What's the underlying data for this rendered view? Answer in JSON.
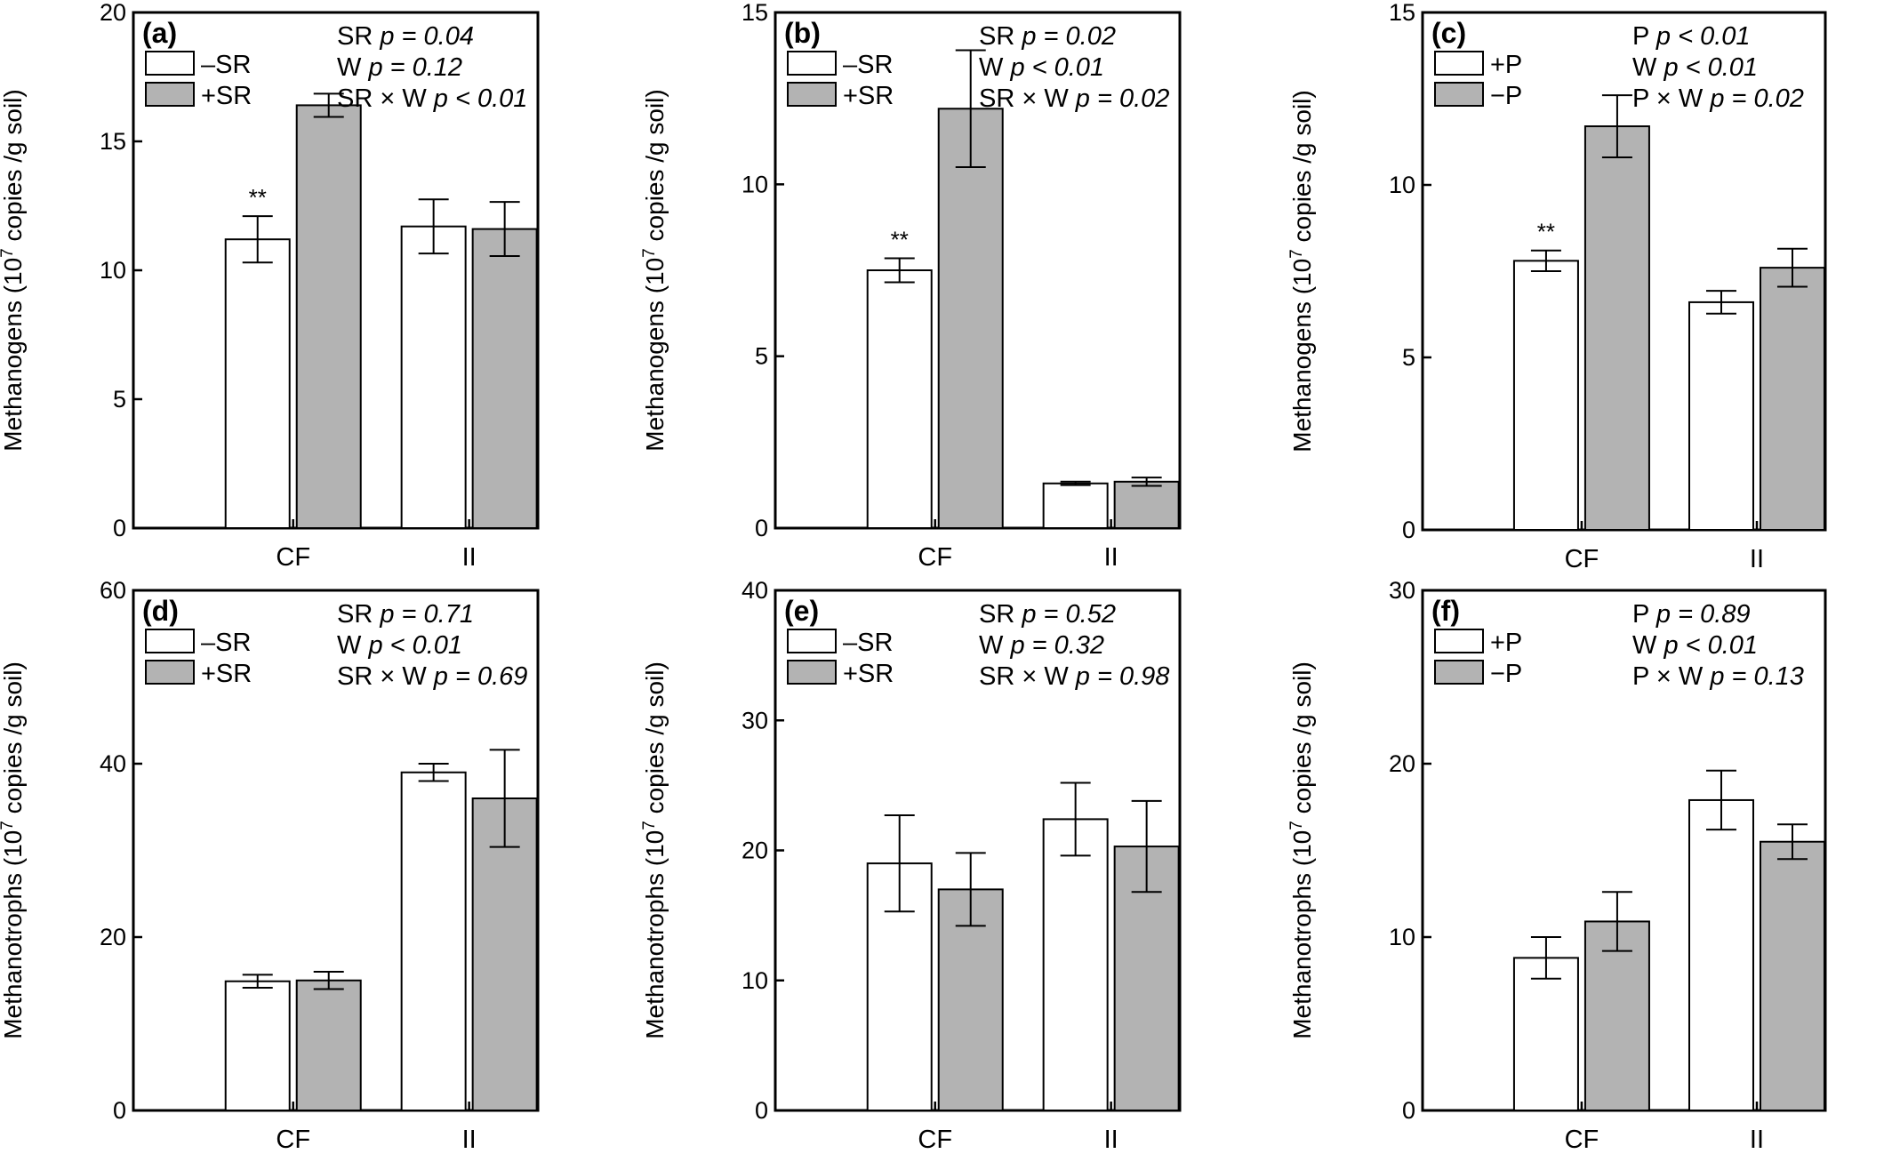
{
  "figure": {
    "ylabel_methanogens": "Methanogens  (10^7 copies /g soil)",
    "ylabel_methanotrophs": "Methanotrophs (10^7 copies /g soil)"
  },
  "chart_data": [
    {
      "type": "bar",
      "panel": "(a)",
      "ylabel": "Methanogens  (10^7 copies /g soil)",
      "categories": [
        "CF",
        "II"
      ],
      "ylim": [
        0,
        20
      ],
      "yticks": [
        0,
        5,
        10,
        15,
        20
      ],
      "series": [
        {
          "name": "–SR",
          "fill": "#ffffff",
          "values": [
            11.2,
            11.7
          ],
          "errors": [
            0.9,
            1.05
          ]
        },
        {
          "name": "+SR",
          "fill": "#b3b3b3",
          "values": [
            16.4,
            11.6
          ],
          "errors": [
            0.45,
            1.05
          ]
        }
      ],
      "stats": [
        {
          "label": "SR",
          "value": "p = 0.04"
        },
        {
          "label": "W",
          "value": "p = 0.12"
        },
        {
          "label": "SR × W",
          "value": "p < 0.01"
        }
      ],
      "annotations": [
        {
          "text": "**",
          "category": "CF",
          "series": 0
        }
      ]
    },
    {
      "type": "bar",
      "panel": "(b)",
      "ylabel": "Methanogens (10^7 copies /g soil)",
      "categories": [
        "CF",
        "II"
      ],
      "ylim": [
        0,
        15
      ],
      "yticks": [
        0,
        5,
        10,
        15
      ],
      "series": [
        {
          "name": "–SR",
          "fill": "#ffffff",
          "values": [
            7.5,
            1.3
          ],
          "errors": [
            0.35,
            0.05
          ]
        },
        {
          "name": "+SR",
          "fill": "#b3b3b3",
          "values": [
            12.2,
            1.35
          ],
          "errors": [
            1.7,
            0.12
          ]
        }
      ],
      "stats": [
        {
          "label": "SR",
          "value": "p = 0.02"
        },
        {
          "label": "W",
          "value": "p < 0.01"
        },
        {
          "label": "SR × W",
          "value": "p = 0.02"
        }
      ],
      "annotations": [
        {
          "text": "**",
          "category": "CF",
          "series": 0
        }
      ]
    },
    {
      "type": "bar",
      "panel": "(c)",
      "ylabel": "Methanogens (10^7 copies /g soil)",
      "categories": [
        "CF",
        "II"
      ],
      "ylim": [
        0,
        15
      ],
      "yticks": [
        0,
        5,
        10,
        15
      ],
      "series": [
        {
          "name": "+P",
          "fill": "#ffffff",
          "values": [
            7.8,
            6.6
          ],
          "errors": [
            0.3,
            0.33
          ]
        },
        {
          "name": "−P",
          "fill": "#b3b3b3",
          "values": [
            11.7,
            7.6
          ],
          "errors": [
            0.9,
            0.55
          ]
        }
      ],
      "stats": [
        {
          "label": "P",
          "value": "p < 0.01"
        },
        {
          "label": "W",
          "value": "p < 0.01"
        },
        {
          "label": "P × W",
          "value": "p = 0.02"
        }
      ],
      "annotations": [
        {
          "text": "**",
          "category": "CF",
          "series": 0
        }
      ]
    },
    {
      "type": "bar",
      "panel": "(d)",
      "ylabel": "Methanotrophs (10^7 copies /g soil)",
      "categories": [
        "CF",
        "II"
      ],
      "ylim": [
        0,
        60
      ],
      "yticks": [
        0,
        20,
        40,
        60
      ],
      "series": [
        {
          "name": "–SR",
          "fill": "#ffffff",
          "values": [
            14.9,
            39.0
          ],
          "errors": [
            0.75,
            1.0
          ]
        },
        {
          "name": "+SR",
          "fill": "#b3b3b3",
          "values": [
            15.0,
            36.0
          ],
          "errors": [
            1.0,
            5.6
          ]
        }
      ],
      "stats": [
        {
          "label": "SR",
          "value": "p = 0.71"
        },
        {
          "label": "W",
          "value": "p < 0.01"
        },
        {
          "label": "SR × W",
          "value": "p = 0.69"
        }
      ],
      "annotations": []
    },
    {
      "type": "bar",
      "panel": "(e)",
      "ylabel": "Methanotrophs (10^7 copies /g soil)",
      "categories": [
        "CF",
        "II"
      ],
      "ylim": [
        0,
        40
      ],
      "yticks": [
        0,
        10,
        20,
        30,
        40
      ],
      "series": [
        {
          "name": "–SR",
          "fill": "#ffffff",
          "values": [
            19.0,
            22.4
          ],
          "errors": [
            3.7,
            2.8
          ]
        },
        {
          "name": "+SR",
          "fill": "#b3b3b3",
          "values": [
            17.0,
            20.3
          ],
          "errors": [
            2.8,
            3.5
          ]
        }
      ],
      "stats": [
        {
          "label": "SR",
          "value": "p = 0.52"
        },
        {
          "label": "W",
          "value": "p = 0.32"
        },
        {
          "label": "SR × W",
          "value": "p = 0.98"
        }
      ],
      "annotations": []
    },
    {
      "type": "bar",
      "panel": "(f)",
      "ylabel": "Methanotrophs (10^7 copies /g soil)",
      "categories": [
        "CF",
        "II"
      ],
      "ylim": [
        0,
        30
      ],
      "yticks": [
        0,
        10,
        20,
        30
      ],
      "series": [
        {
          "name": "+P",
          "fill": "#ffffff",
          "values": [
            8.8,
            17.9
          ],
          "errors": [
            1.2,
            1.7
          ]
        },
        {
          "name": "−P",
          "fill": "#b3b3b3",
          "values": [
            10.9,
            15.5
          ],
          "errors": [
            1.7,
            1.0
          ]
        }
      ],
      "stats": [
        {
          "label": "P",
          "value": "p = 0.89"
        },
        {
          "label": "W",
          "value": "p < 0.01"
        },
        {
          "label": "P × W",
          "value": "p = 0.13"
        }
      ],
      "annotations": []
    }
  ]
}
